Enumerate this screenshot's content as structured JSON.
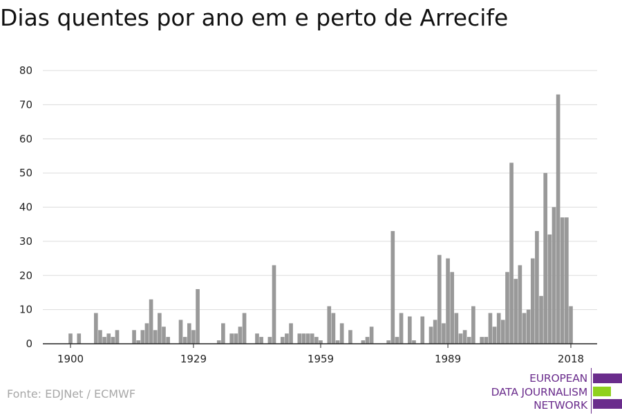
{
  "title": "Dias quentes por ano em e perto de Arrecife",
  "source": "Fonte: EDJNet / ECMWF",
  "logo": {
    "line1": "EUROPEAN",
    "line2": "DATA JOURNALISM",
    "line3": "NETWORK",
    "purple": "#6a2c8c",
    "green": "#8fd11e"
  },
  "colors": {
    "bar": "#999999",
    "grid": "#dcdcdc",
    "axis": "#222222"
  },
  "chart_data": {
    "type": "bar",
    "title": "Dias quentes por ano em e perto de Arrecife",
    "xlabel": "",
    "ylabel": "",
    "ylim": [
      0,
      80
    ],
    "yticks": [
      0,
      10,
      20,
      30,
      40,
      50,
      60,
      70,
      80
    ],
    "xticks": [
      1900,
      1929,
      1959,
      1989,
      2018
    ],
    "grid": true,
    "x": [
      1900,
      1901,
      1902,
      1903,
      1904,
      1905,
      1906,
      1907,
      1908,
      1909,
      1910,
      1911,
      1912,
      1913,
      1914,
      1915,
      1916,
      1917,
      1918,
      1919,
      1920,
      1921,
      1922,
      1923,
      1924,
      1925,
      1926,
      1927,
      1928,
      1929,
      1930,
      1931,
      1932,
      1933,
      1934,
      1935,
      1936,
      1937,
      1938,
      1939,
      1940,
      1941,
      1942,
      1943,
      1944,
      1945,
      1946,
      1947,
      1948,
      1949,
      1950,
      1951,
      1952,
      1953,
      1954,
      1955,
      1956,
      1957,
      1958,
      1959,
      1960,
      1961,
      1962,
      1963,
      1964,
      1965,
      1966,
      1967,
      1968,
      1969,
      1970,
      1971,
      1972,
      1973,
      1974,
      1975,
      1976,
      1977,
      1978,
      1979,
      1980,
      1981,
      1982,
      1983,
      1984,
      1985,
      1986,
      1987,
      1988,
      1989,
      1990,
      1991,
      1992,
      1993,
      1994,
      1995,
      1996,
      1997,
      1998,
      1999,
      2000,
      2001,
      2002,
      2003,
      2004,
      2005,
      2006,
      2007,
      2008,
      2009,
      2010,
      2011,
      2012,
      2013,
      2014,
      2015,
      2016,
      2017,
      2018,
      2019
    ],
    "values": [
      3,
      0,
      3,
      0,
      0,
      0,
      9,
      4,
      2,
      3,
      2,
      4,
      0,
      0,
      0,
      4,
      1,
      4,
      6,
      13,
      4,
      9,
      5,
      2,
      0,
      0,
      7,
      2,
      6,
      4,
      16,
      0,
      0,
      0,
      0,
      1,
      6,
      0,
      3,
      3,
      5,
      9,
      0,
      0,
      3,
      2,
      0,
      2,
      23,
      0,
      2,
      3,
      6,
      0,
      3,
      3,
      3,
      3,
      2,
      1,
      0,
      11,
      9,
      1,
      6,
      0,
      4,
      0,
      0,
      1,
      2,
      5,
      0,
      0,
      0,
      1,
      33,
      2,
      9,
      0,
      8,
      1,
      0,
      8,
      0,
      5,
      7,
      26,
      6,
      25,
      21,
      9,
      3,
      4,
      2,
      11,
      0,
      2,
      2,
      9,
      5,
      9,
      7,
      21,
      53,
      19,
      23,
      9,
      10,
      25,
      33,
      14,
      50,
      32,
      40,
      73,
      37,
      37,
      11,
      0
    ]
  }
}
